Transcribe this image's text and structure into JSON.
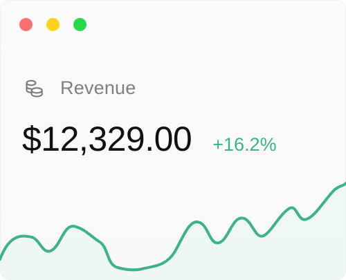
{
  "window": {
    "controls": [
      {
        "name": "close",
        "color": "#ff6f6f"
      },
      {
        "name": "minimize",
        "color": "#ffd21c"
      },
      {
        "name": "maximize",
        "color": "#28d84b"
      }
    ]
  },
  "metric": {
    "icon": "coins-icon",
    "label": "Revenue",
    "value": "$12,329.00",
    "change": "+16.2%",
    "change_color": "#3bb48d"
  },
  "sparkline": {
    "color": "#3bb48d",
    "fill_color": "#e7f6ef"
  }
}
